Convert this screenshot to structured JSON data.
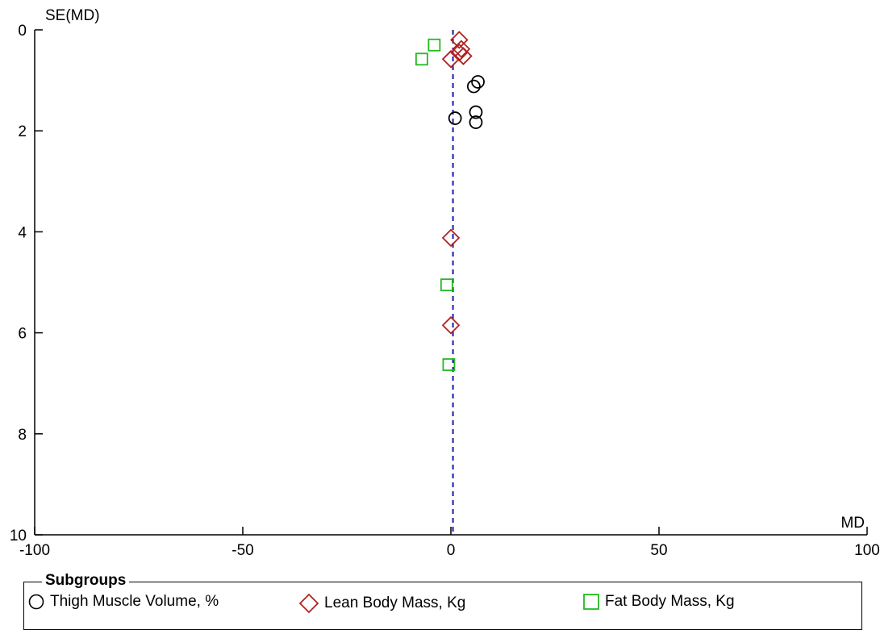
{
  "chart_data": {
    "type": "scatter",
    "xlabel": "MD",
    "ylabel": "SE(MD)",
    "xlim": [
      -100,
      100
    ],
    "ylim": [
      0,
      10
    ],
    "y_inverted": true,
    "x_ticks": [
      "-100",
      "-50",
      "0",
      "50",
      "100"
    ],
    "y_ticks": [
      "0",
      "2",
      "4",
      "6",
      "8",
      "10"
    ],
    "reference_line": {
      "x": 0.5,
      "style": "dashed",
      "color": "#1a1aa6"
    },
    "series": [
      {
        "name": "Thigh Muscle Volume, %",
        "marker": "circle",
        "color": "#000000",
        "points": [
          {
            "x": 6.5,
            "y": 1.03
          },
          {
            "x": 5.5,
            "y": 1.12
          },
          {
            "x": 6.0,
            "y": 1.63
          },
          {
            "x": 6.0,
            "y": 1.83
          },
          {
            "x": 1.0,
            "y": 1.75
          }
        ]
      },
      {
        "name": "Lean Body Mass, Kg",
        "marker": "diamond",
        "color": "#b22222",
        "points": [
          {
            "x": 2.0,
            "y": 0.2
          },
          {
            "x": 2.5,
            "y": 0.38
          },
          {
            "x": 2.0,
            "y": 0.45
          },
          {
            "x": 3.0,
            "y": 0.52
          },
          {
            "x": 0.0,
            "y": 0.58
          },
          {
            "x": 0.0,
            "y": 4.12
          },
          {
            "x": 0.0,
            "y": 5.85
          }
        ]
      },
      {
        "name": "Fat Body Mass, Kg",
        "marker": "square",
        "color": "#22bb22",
        "points": [
          {
            "x": -4.0,
            "y": 0.3
          },
          {
            "x": -7.0,
            "y": 0.58
          },
          {
            "x": -1.0,
            "y": 5.05
          },
          {
            "x": -0.5,
            "y": 6.63
          }
        ]
      }
    ]
  },
  "legend": {
    "title": "Subgroups",
    "items": [
      {
        "label": "Thigh Muscle Volume, %",
        "marker": "circle",
        "color": "#000000"
      },
      {
        "label": "Lean Body Mass, Kg",
        "marker": "diamond",
        "color": "#b22222"
      },
      {
        "label": "Fat Body Mass, Kg",
        "marker": "square",
        "color": "#22bb22"
      }
    ]
  }
}
